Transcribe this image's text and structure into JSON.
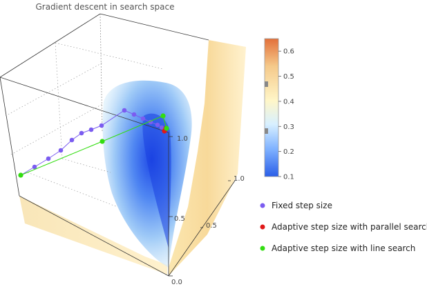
{
  "chart_data": {
    "type": "surface3d",
    "title": "Gradient descent in search space",
    "axes": {
      "z_ticks": [
        "0.0",
        "0.5",
        "1.0"
      ],
      "y_ticks": [
        "0.5",
        "1.0"
      ],
      "xlabel": "",
      "ylabel": "",
      "zlabel": ""
    },
    "colorbar": {
      "ticks": [
        "0.1",
        "0.2",
        "0.3",
        "0.4",
        "0.5",
        "0.6"
      ],
      "range": [
        0.1,
        0.65
      ],
      "colors": [
        "#2a5ee8",
        "#7fb2ff",
        "#d8f0ff",
        "#fff6c8",
        "#f5c98a",
        "#e3703a"
      ]
    },
    "series": [
      {
        "name": "Fixed step size",
        "color": "#7b5cf0",
        "points": 14
      },
      {
        "name": "Adaptive step size with parallel search",
        "color": "#e01818",
        "points": 2
      },
      {
        "name": "Adaptive step size with line search",
        "color": "#33dd11",
        "points": 4
      }
    ],
    "legend_position": "bottom-right",
    "grid": true
  }
}
